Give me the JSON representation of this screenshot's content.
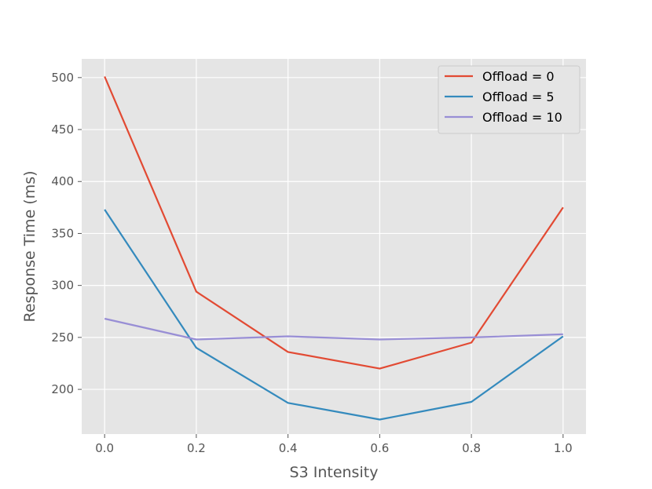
{
  "chart_data": {
    "type": "line",
    "title": "",
    "xlabel": "S3 Intensity",
    "ylabel": "Response Time (ms)",
    "x": [
      0.0,
      0.2,
      0.4,
      0.6,
      0.8,
      1.0
    ],
    "x_tick_labels": [
      "0.0",
      "0.2",
      "0.4",
      "0.6",
      "0.8",
      "1.0"
    ],
    "y_ticks": [
      200,
      250,
      300,
      350,
      400,
      450,
      500
    ],
    "y_tick_labels": [
      "200",
      "250",
      "300",
      "350",
      "400",
      "450",
      "500"
    ],
    "xlim": [
      -0.05,
      1.05
    ],
    "ylim": [
      157,
      518
    ],
    "grid": true,
    "legend_position": "top-right",
    "style": "ggplot",
    "series": [
      {
        "name": "Offload = 0",
        "color": "#E24A33",
        "values": [
          501,
          294,
          236,
          220,
          245,
          375
        ]
      },
      {
        "name": "Offload = 5",
        "color": "#348ABD",
        "values": [
          373,
          240,
          187,
          171,
          188,
          251
        ]
      },
      {
        "name": "Offload = 10",
        "color": "#988ED5",
        "values": [
          268,
          248,
          251,
          248,
          250,
          253
        ]
      }
    ]
  }
}
